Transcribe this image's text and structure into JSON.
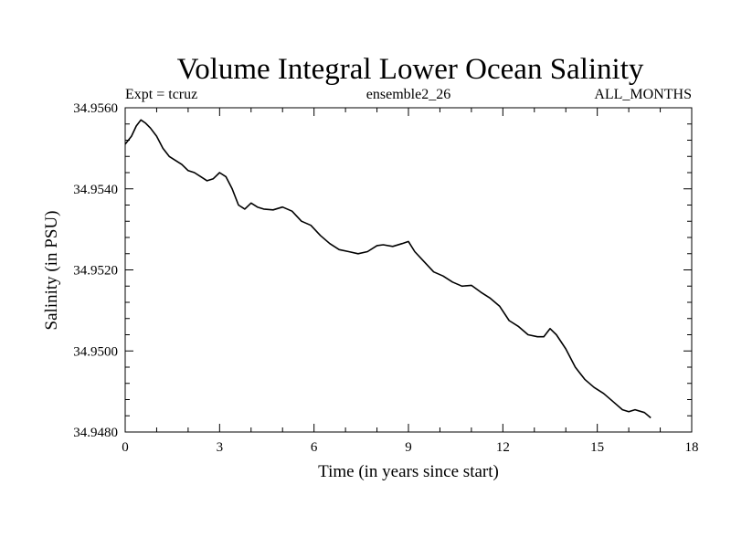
{
  "chart_data": {
    "type": "line",
    "title": "Volume Integral Lower Ocean Salinity",
    "subtitle_left": "Expt = tcruz",
    "subtitle_center": "ensemble2_26",
    "subtitle_right": "ALL_MONTHS",
    "xlabel": "Time (in years since start)",
    "ylabel": "Salinity (in PSU)",
    "xlim": [
      0,
      18
    ],
    "ylim": [
      34.948,
      34.956
    ],
    "xticks": [
      0,
      3,
      6,
      9,
      12,
      15,
      18
    ],
    "xtick_labels": [
      "0",
      "3",
      "6",
      "9",
      "12",
      "15",
      "18"
    ],
    "yticks": [
      34.948,
      34.95,
      34.952,
      34.954,
      34.956
    ],
    "ytick_labels": [
      "34.9480",
      "34.9500",
      "34.9520",
      "34.9540",
      "34.9560"
    ],
    "grid": false,
    "color": "#000000",
    "series": [
      {
        "x": [
          0.0,
          0.2,
          0.35,
          0.5,
          0.65,
          0.8,
          1.0,
          1.2,
          1.4,
          1.6,
          1.8,
          2.0,
          2.2,
          2.4,
          2.6,
          2.8,
          3.0,
          3.2,
          3.4,
          3.6,
          3.8,
          4.0,
          4.2,
          4.4,
          4.7,
          5.0,
          5.3,
          5.6,
          5.9,
          6.2,
          6.5,
          6.8,
          7.1,
          7.4,
          7.7,
          8.0,
          8.2,
          8.5,
          8.8,
          9.0,
          9.2,
          9.5,
          9.8,
          10.1,
          10.4,
          10.7,
          11.0,
          11.3,
          11.6,
          11.9,
          12.2,
          12.5,
          12.8,
          13.1,
          13.3,
          13.5,
          13.7,
          14.0,
          14.3,
          14.6,
          14.9,
          15.2,
          15.5,
          15.8,
          16.0,
          16.2,
          16.5,
          16.7
        ],
        "y": [
          34.9551,
          34.9553,
          34.95555,
          34.9557,
          34.95562,
          34.9555,
          34.9553,
          34.955,
          34.9548,
          34.9547,
          34.9546,
          34.95445,
          34.9544,
          34.9543,
          34.9542,
          34.95425,
          34.9544,
          34.9543,
          34.954,
          34.9536,
          34.9535,
          34.95365,
          34.95355,
          34.9535,
          34.95348,
          34.95355,
          34.95345,
          34.9532,
          34.9531,
          34.95285,
          34.95265,
          34.9525,
          34.95245,
          34.9524,
          34.95245,
          34.9526,
          34.95262,
          34.95258,
          34.95265,
          34.9527,
          34.95245,
          34.9522,
          34.95195,
          34.95185,
          34.9517,
          34.9516,
          34.95162,
          34.95145,
          34.9513,
          34.9511,
          34.95075,
          34.9506,
          34.9504,
          34.95035,
          34.95035,
          34.95055,
          34.9504,
          34.95005,
          34.9496,
          34.9493,
          34.9491,
          34.94895,
          34.94875,
          34.94855,
          34.9485,
          34.94855,
          34.94848,
          34.94835
        ]
      }
    ]
  }
}
